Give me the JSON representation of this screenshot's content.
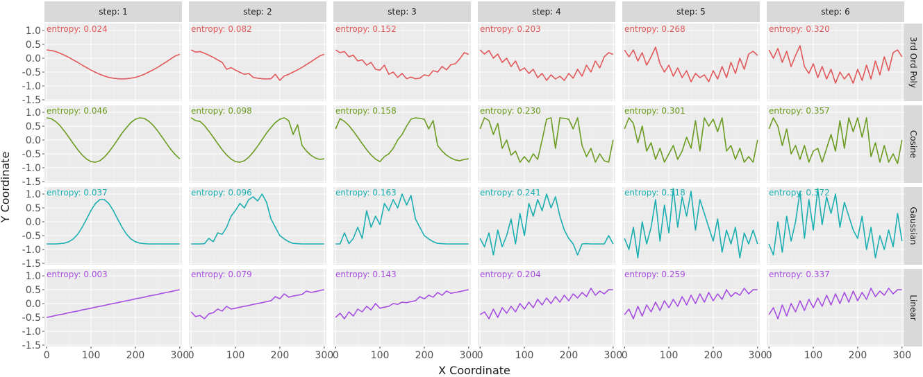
{
  "chart_data": {
    "type": "line",
    "xlabel": "X Coordinate",
    "ylabel": "Y Coordinate",
    "xlim": [
      -5,
      305
    ],
    "ylim": [
      -1.55,
      1.25
    ],
    "x_ticks": [
      0,
      100,
      200,
      300
    ],
    "x_tick_labels": [
      "0",
      "100",
      "200",
      "300"
    ],
    "y_ticks": [
      1.0,
      0.5,
      0.0,
      -0.5,
      -1.0,
      -1.5
    ],
    "y_tick_labels": [
      "1.0",
      "0.5",
      "0.0",
      "-0.5",
      "-1.0",
      "-1.5"
    ],
    "grid": true,
    "legend": "none",
    "columns": [
      "step: 1",
      "step: 2",
      "step: 3",
      "step: 4",
      "step: 5",
      "step: 6"
    ],
    "rows": [
      {
        "name": "3rd Ord Poly",
        "color": "#e15759",
        "entropy": [
          "entropy: 0.024",
          "entropy: 0.082",
          "entropy: 0.152",
          "entropy: 0.203",
          "entropy: 0.268",
          "entropy: 0.320"
        ]
      },
      {
        "name": "Cosine",
        "color": "#6a9a1f",
        "entropy": [
          "entropy: 0.046",
          "entropy: 0.098",
          "entropy: 0.158",
          "entropy: 0.230",
          "entropy: 0.301",
          "entropy: 0.357"
        ]
      },
      {
        "name": "Gaussian",
        "color": "#1aaeb0",
        "entropy": [
          "entropy: 0.037",
          "entropy: 0.096",
          "entropy: 0.163",
          "entropy: 0.241",
          "entropy: 0.318",
          "entropy: 0.372"
        ]
      },
      {
        "name": "Linear",
        "color": "#a64ee0",
        "entropy": [
          "entropy: 0.003",
          "entropy: 0.079",
          "entropy: 0.143",
          "entropy: 0.204",
          "entropy: 0.259",
          "entropy: 0.337"
        ]
      }
    ],
    "x_values": [
      0,
      10,
      20,
      30,
      40,
      50,
      60,
      70,
      80,
      90,
      100,
      110,
      120,
      130,
      140,
      150,
      160,
      170,
      180,
      190,
      200,
      210,
      220,
      230,
      240,
      250,
      260,
      270,
      280,
      290,
      300
    ],
    "series": [
      {
        "row": "3rd Ord Poly",
        "step": 1,
        "values": [
          0.3,
          0.28,
          0.24,
          0.18,
          0.11,
          0.03,
          -0.06,
          -0.15,
          -0.25,
          -0.34,
          -0.43,
          -0.51,
          -0.58,
          -0.64,
          -0.69,
          -0.72,
          -0.74,
          -0.75,
          -0.74,
          -0.72,
          -0.69,
          -0.64,
          -0.58,
          -0.5,
          -0.42,
          -0.33,
          -0.23,
          -0.13,
          -0.02,
          0.08,
          0.14
        ]
      },
      {
        "row": "3rd Ord Poly",
        "step": 2,
        "values": [
          0.3,
          0.22,
          0.24,
          0.18,
          0.11,
          0.03,
          -0.06,
          -0.15,
          -0.4,
          -0.34,
          -0.43,
          -0.51,
          -0.58,
          -0.55,
          -0.69,
          -0.72,
          -0.74,
          -0.75,
          -0.74,
          -0.58,
          -0.8,
          -0.64,
          -0.58,
          -0.5,
          -0.42,
          -0.33,
          -0.23,
          -0.13,
          -0.02,
          0.08,
          0.14
        ]
      },
      {
        "row": "3rd Ord Poly",
        "step": 3,
        "values": [
          0.3,
          0.2,
          0.24,
          0.05,
          0.11,
          -0.1,
          -0.06,
          -0.25,
          -0.15,
          -0.4,
          -0.43,
          -0.25,
          -0.58,
          -0.5,
          -0.69,
          -0.55,
          -0.74,
          -0.68,
          -0.74,
          -0.72,
          -0.6,
          -0.64,
          -0.45,
          -0.5,
          -0.3,
          -0.42,
          -0.23,
          -0.2,
          -0.02,
          0.2,
          0.14
        ]
      },
      {
        "row": "3rd Ord Poly",
        "step": 4,
        "values": [
          0.3,
          0.15,
          0.28,
          0.0,
          0.15,
          -0.15,
          0.0,
          -0.3,
          -0.1,
          -0.45,
          -0.35,
          -0.55,
          -0.4,
          -0.7,
          -0.55,
          -0.8,
          -0.6,
          -0.75,
          -0.65,
          -0.8,
          -0.55,
          -0.72,
          -0.4,
          -0.65,
          -0.25,
          -0.5,
          -0.1,
          -0.35,
          0.05,
          0.2,
          0.14
        ]
      },
      {
        "row": "3rd Ord Poly",
        "step": 5,
        "values": [
          0.3,
          0.05,
          0.3,
          -0.1,
          0.2,
          -0.25,
          0.05,
          0.4,
          -0.2,
          -0.5,
          -0.25,
          -0.65,
          -0.35,
          -0.7,
          -0.45,
          -0.85,
          -0.55,
          -0.7,
          -0.6,
          -0.85,
          -0.45,
          -0.75,
          -0.3,
          -0.7,
          -0.15,
          -0.55,
          0.0,
          -0.4,
          0.15,
          0.25,
          0.1
        ]
      },
      {
        "row": "3rd Ord Poly",
        "step": 6,
        "values": [
          0.3,
          0.0,
          0.35,
          -0.15,
          0.25,
          -0.3,
          0.1,
          0.45,
          -0.3,
          -0.55,
          -0.2,
          -0.7,
          -0.3,
          -0.75,
          -0.4,
          -0.9,
          -0.5,
          -0.75,
          -0.55,
          -0.9,
          -0.4,
          -0.8,
          -0.25,
          -0.75,
          -0.1,
          -0.6,
          0.05,
          -0.45,
          0.2,
          0.3,
          0.05
        ]
      },
      {
        "row": "Cosine",
        "step": 1,
        "values": [
          0.8,
          0.77,
          0.67,
          0.52,
          0.32,
          0.1,
          -0.13,
          -0.35,
          -0.54,
          -0.69,
          -0.78,
          -0.8,
          -0.75,
          -0.62,
          -0.44,
          -0.22,
          0.01,
          0.25,
          0.45,
          0.63,
          0.75,
          0.8,
          0.78,
          0.68,
          0.53,
          0.33,
          0.11,
          -0.12,
          -0.34,
          -0.53,
          -0.68
        ]
      },
      {
        "row": "Cosine",
        "step": 2,
        "values": [
          0.8,
          0.7,
          0.67,
          0.52,
          0.32,
          0.1,
          -0.13,
          -0.35,
          -0.54,
          -0.69,
          -0.78,
          -0.8,
          -0.75,
          -0.62,
          -0.44,
          -0.22,
          0.01,
          0.25,
          0.45,
          0.63,
          0.75,
          0.8,
          0.7,
          0.2,
          0.55,
          -0.2,
          -0.4,
          -0.55,
          -0.65,
          -0.7,
          -0.68
        ]
      },
      {
        "row": "Cosine",
        "step": 3,
        "values": [
          0.4,
          0.77,
          0.67,
          0.52,
          0.32,
          0.1,
          -0.13,
          -0.35,
          -0.54,
          -0.69,
          -0.78,
          -0.6,
          -0.5,
          -0.3,
          0.0,
          0.2,
          0.5,
          0.75,
          0.8,
          0.78,
          0.75,
          0.4,
          0.7,
          -0.2,
          -0.4,
          -0.55,
          -0.65,
          -0.72,
          -0.75,
          -0.7,
          -0.68
        ]
      },
      {
        "row": "Cosine",
        "step": 4,
        "values": [
          0.4,
          0.8,
          0.7,
          0.2,
          0.6,
          -0.3,
          0.0,
          -0.55,
          -0.4,
          -0.8,
          -0.6,
          -0.8,
          -0.5,
          -0.7,
          0.0,
          0.75,
          0.8,
          -0.3,
          0.8,
          0.78,
          0.75,
          0.4,
          0.8,
          -0.2,
          -0.6,
          -0.3,
          -0.8,
          -0.5,
          -0.75,
          -0.8,
          0.0
        ]
      },
      {
        "row": "Cosine",
        "step": 5,
        "values": [
          0.4,
          0.8,
          0.6,
          -0.1,
          0.5,
          -0.4,
          -0.1,
          -0.7,
          -0.3,
          -0.8,
          -0.5,
          -0.2,
          -0.7,
          -0.4,
          0.1,
          -0.3,
          0.7,
          -0.4,
          0.8,
          0.5,
          0.75,
          0.3,
          0.8,
          -0.4,
          -0.2,
          -0.7,
          -0.3,
          -0.8,
          -0.6,
          -0.8,
          0.0
        ]
      },
      {
        "row": "Cosine",
        "step": 6,
        "values": [
          0.4,
          0.8,
          0.5,
          -0.2,
          0.4,
          -0.5,
          -0.2,
          -0.7,
          -0.2,
          -0.8,
          -0.4,
          -0.3,
          -0.8,
          -0.3,
          0.2,
          -0.4,
          0.7,
          -0.3,
          0.8,
          0.3,
          0.8,
          0.1,
          0.8,
          -0.6,
          -0.1,
          -0.8,
          -0.2,
          -0.8,
          -0.5,
          -0.85,
          0.0
        ]
      },
      {
        "row": "Gaussian",
        "step": 1,
        "values": [
          -0.8,
          -0.8,
          -0.8,
          -0.79,
          -0.77,
          -0.72,
          -0.62,
          -0.45,
          -0.2,
          0.1,
          0.41,
          0.66,
          0.8,
          0.8,
          0.66,
          0.41,
          0.1,
          -0.2,
          -0.45,
          -0.62,
          -0.72,
          -0.77,
          -0.79,
          -0.8,
          -0.8,
          -0.8,
          -0.8,
          -0.8,
          -0.8,
          -0.8,
          -0.8
        ]
      },
      {
        "row": "Gaussian",
        "step": 2,
        "values": [
          -0.8,
          -0.8,
          -0.8,
          -0.79,
          -0.6,
          -0.72,
          -0.4,
          -0.45,
          -0.2,
          0.2,
          0.41,
          0.66,
          0.5,
          0.8,
          0.9,
          0.75,
          1.0,
          0.7,
          0.1,
          -0.2,
          -0.5,
          -0.62,
          -0.72,
          -0.78,
          -0.79,
          -0.8,
          -0.8,
          -0.8,
          -0.8,
          -0.8,
          -0.8
        ]
      },
      {
        "row": "Gaussian",
        "step": 3,
        "values": [
          -0.8,
          -0.8,
          -0.4,
          -0.79,
          -0.6,
          -0.2,
          -0.6,
          0.4,
          -0.2,
          0.2,
          -0.1,
          0.66,
          0.4,
          0.8,
          0.5,
          1.0,
          0.6,
          0.95,
          0.1,
          -0.2,
          -0.5,
          -0.62,
          -0.72,
          -0.78,
          -0.79,
          -0.8,
          -0.8,
          -0.8,
          -0.8,
          -0.8,
          -0.8
        ]
      },
      {
        "row": "Gaussian",
        "step": 4,
        "values": [
          -0.6,
          -0.9,
          -0.4,
          -1.2,
          -0.3,
          -0.9,
          -0.5,
          0.1,
          -0.8,
          0.3,
          -0.5,
          0.66,
          0.2,
          0.8,
          0.4,
          1.0,
          0.5,
          0.9,
          0.2,
          -0.3,
          -0.6,
          -0.8,
          -1.2,
          -0.8,
          -0.79,
          -0.8,
          -0.8,
          -0.8,
          -0.8,
          -0.5,
          -0.8
        ]
      },
      {
        "row": "Gaussian",
        "step": 5,
        "values": [
          -0.6,
          -1.0,
          -0.2,
          -1.3,
          0.0,
          -0.8,
          -0.2,
          0.8,
          -0.7,
          0.6,
          -0.4,
          1.2,
          -0.2,
          0.9,
          0.2,
          1.1,
          -0.3,
          0.8,
          0.3,
          -0.2,
          -0.7,
          0.1,
          -1.1,
          -0.3,
          -0.8,
          -0.2,
          -1.3,
          -0.4,
          -0.8,
          -0.3,
          -0.8
        ]
      },
      {
        "row": "Gaussian",
        "step": 6,
        "values": [
          -0.8,
          -1.2,
          0.0,
          -1.1,
          0.2,
          -0.7,
          0.0,
          1.1,
          -0.6,
          0.8,
          -0.3,
          1.2,
          -0.1,
          0.9,
          0.3,
          1.0,
          -0.2,
          0.7,
          0.2,
          -0.3,
          -0.6,
          0.2,
          -1.0,
          -0.2,
          -1.3,
          -0.5,
          -1.0,
          -0.3,
          -0.9,
          0.3,
          -0.7
        ]
      },
      {
        "row": "Linear",
        "step": 1,
        "values": [
          -0.5,
          -0.47,
          -0.43,
          -0.4,
          -0.37,
          -0.33,
          -0.3,
          -0.27,
          -0.23,
          -0.2,
          -0.17,
          -0.13,
          -0.1,
          -0.07,
          -0.03,
          0.0,
          0.03,
          0.07,
          0.1,
          0.13,
          0.17,
          0.2,
          0.23,
          0.27,
          0.3,
          0.33,
          0.37,
          0.4,
          0.43,
          0.47,
          0.5
        ]
      },
      {
        "row": "Linear",
        "step": 2,
        "values": [
          -0.3,
          -0.47,
          -0.43,
          -0.55,
          -0.37,
          -0.33,
          -0.2,
          -0.27,
          -0.1,
          -0.2,
          -0.17,
          -0.13,
          -0.1,
          -0.07,
          -0.03,
          0.0,
          0.03,
          0.07,
          0.1,
          0.25,
          0.17,
          0.35,
          0.23,
          0.27,
          0.3,
          0.33,
          0.45,
          0.4,
          0.43,
          0.47,
          0.5
        ]
      },
      {
        "row": "Linear",
        "step": 3,
        "values": [
          -0.5,
          -0.35,
          -0.55,
          -0.3,
          -0.45,
          -0.2,
          -0.3,
          -0.1,
          -0.23,
          0.0,
          -0.17,
          -0.13,
          -0.1,
          0.0,
          -0.03,
          0.05,
          0.03,
          0.07,
          0.1,
          0.25,
          0.17,
          0.3,
          0.23,
          0.4,
          0.3,
          0.45,
          0.37,
          0.4,
          0.43,
          0.47,
          0.5
        ]
      },
      {
        "row": "Linear",
        "step": 4,
        "values": [
          -0.4,
          -0.3,
          -0.55,
          -0.2,
          -0.5,
          -0.15,
          -0.35,
          -0.1,
          -0.3,
          0.0,
          -0.2,
          0.05,
          -0.15,
          0.15,
          -0.05,
          0.2,
          0.0,
          0.25,
          0.05,
          0.3,
          0.1,
          0.35,
          0.2,
          0.4,
          0.25,
          0.55,
          0.3,
          0.45,
          0.35,
          0.5,
          0.5
        ]
      },
      {
        "row": "Linear",
        "step": 5,
        "values": [
          -0.4,
          -0.2,
          -0.55,
          -0.1,
          -0.45,
          -0.05,
          -0.3,
          0.05,
          -0.25,
          0.1,
          -0.15,
          0.15,
          -0.1,
          0.25,
          -0.05,
          0.3,
          0.0,
          0.35,
          0.05,
          0.4,
          0.1,
          0.35,
          0.15,
          0.5,
          0.25,
          0.4,
          0.3,
          0.55,
          0.35,
          0.5,
          0.5
        ]
      },
      {
        "row": "Linear",
        "step": 6,
        "values": [
          -0.4,
          -0.15,
          -0.55,
          -0.05,
          -0.45,
          0.0,
          -0.3,
          0.1,
          -0.25,
          0.15,
          -0.15,
          0.2,
          -0.1,
          0.3,
          -0.05,
          0.35,
          0.0,
          0.4,
          0.05,
          0.45,
          0.1,
          0.4,
          0.15,
          0.55,
          0.25,
          0.45,
          0.3,
          0.55,
          0.35,
          0.5,
          0.5
        ]
      }
    ]
  }
}
